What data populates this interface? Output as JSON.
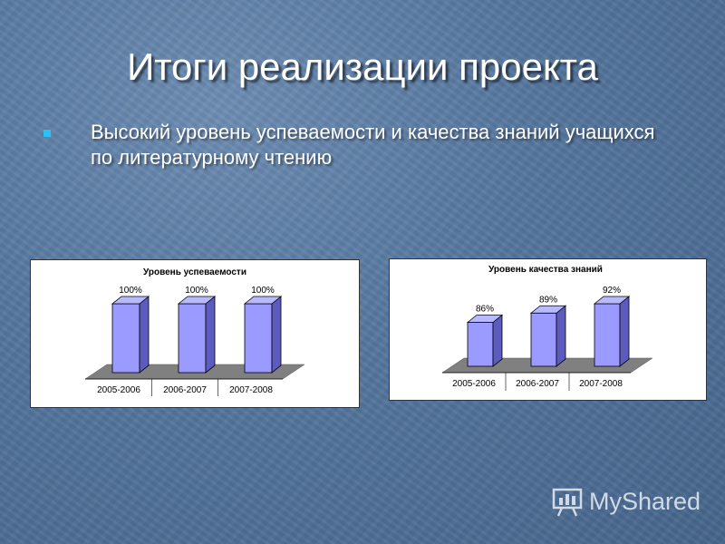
{
  "slide": {
    "title": "Итоги реализации проекта",
    "bullet": "Высокий уровень успеваемости и качества знаний учащихся по литературному чтению"
  },
  "watermark": {
    "text": "MyShared",
    "icon": "presentation-board-icon"
  },
  "colors": {
    "bar_front": "#9b9bff",
    "bar_side": "#5c5cbf",
    "bar_top": "#b9b9ff",
    "floor": "#808080",
    "accent_bullet": "#2ec0f0"
  },
  "chart_data": [
    {
      "type": "bar",
      "title": "Уровень успеваемости",
      "categories": [
        "2005-2006",
        "2006-2007",
        "2007-2008"
      ],
      "values": [
        100,
        100,
        100
      ],
      "data_labels": [
        "100%",
        "100%",
        "100%"
      ],
      "ylim": [
        0,
        100
      ],
      "style": "3d"
    },
    {
      "type": "bar",
      "title": "Уровень качества знаний",
      "categories": [
        "2005-2006",
        "2006-2007",
        "2007-2008"
      ],
      "values": [
        86,
        89,
        92
      ],
      "data_labels": [
        "86%",
        "89%",
        "92%"
      ],
      "ylim": [
        80,
        92
      ],
      "style": "3d"
    }
  ]
}
